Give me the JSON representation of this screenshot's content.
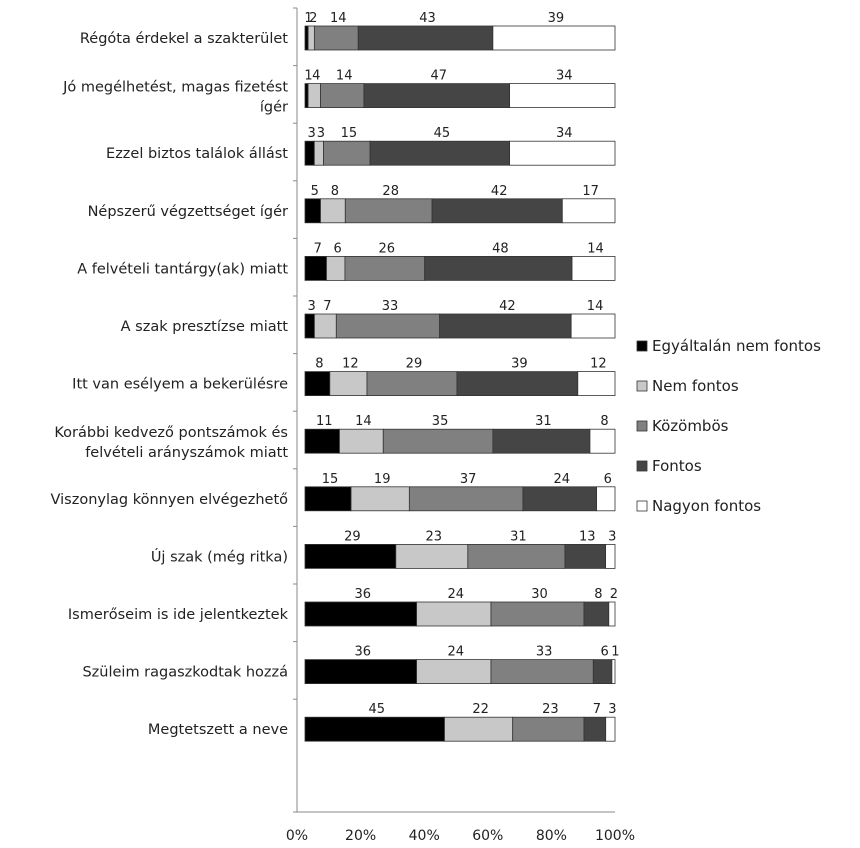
{
  "chart_data": {
    "type": "bar",
    "orientation": "horizontal",
    "stacked": "percent",
    "categories": [
      [
        "Régóta érdekel a szakterület"
      ],
      [
        "Jó megélhetést, magas fizetést",
        "ígér"
      ],
      [
        "Ezzel biztos találok állást"
      ],
      [
        "Népszerű végzettséget ígér"
      ],
      [
        "A felvételi tantárgy(ak) miatt"
      ],
      [
        "A szak presztízse miatt"
      ],
      [
        "Itt van esélyem a bekerülésre"
      ],
      [
        "Korábbi kedvező pontszámok és",
        "felvételi arányszámok miatt"
      ],
      [
        "Viszonylag könnyen elvégezhető"
      ],
      [
        "Új szak (még ritka)"
      ],
      [
        "Ismerőseim is ide jelentkeztek"
      ],
      [
        "Szüleim ragaszkodtak hozzá"
      ],
      [
        "Megtetszett a neve"
      ]
    ],
    "series": [
      {
        "name": "Egyáltalán nem fontos",
        "color": "#000000",
        "values": [
          1,
          1,
          3,
          5,
          7,
          3,
          8,
          11,
          15,
          29,
          36,
          36,
          45
        ]
      },
      {
        "name": "Nem fontos",
        "color": "#c8c8c8",
        "values": [
          2,
          4,
          3,
          8,
          6,
          7,
          12,
          14,
          19,
          23,
          24,
          24,
          22
        ]
      },
      {
        "name": "Közömbös",
        "color": "#808080",
        "values": [
          14,
          14,
          15,
          28,
          26,
          33,
          29,
          35,
          37,
          31,
          30,
          33,
          23
        ]
      },
      {
        "name": "Fontos",
        "color": "#454545",
        "values": [
          43,
          47,
          45,
          42,
          48,
          42,
          39,
          31,
          24,
          13,
          8,
          6,
          7
        ]
      },
      {
        "name": "Nagyon fontos",
        "color": "#ffffff",
        "values": [
          39,
          34,
          34,
          17,
          14,
          14,
          12,
          8,
          6,
          3,
          2,
          1,
          3
        ]
      }
    ],
    "value_labels": [
      [
        "1",
        "2",
        "14",
        "43",
        "39"
      ],
      [
        "1",
        "4",
        "14",
        "47",
        "34"
      ],
      [
        "3",
        "3",
        "15",
        "45",
        "34"
      ],
      [
        "5",
        "8",
        "28",
        "42",
        "17"
      ],
      [
        "7",
        "6",
        "26",
        "48",
        "14"
      ],
      [
        "3",
        "7",
        "33",
        "42",
        "14"
      ],
      [
        "8",
        "12",
        "29",
        "39",
        "12"
      ],
      [
        "11",
        "14",
        "35",
        "31",
        "8"
      ],
      [
        "15",
        "19",
        "37",
        "24",
        "6"
      ],
      [
        "29",
        "23",
        "31",
        "13",
        "3"
      ],
      [
        "36",
        "24",
        "30",
        "8",
        "2"
      ],
      [
        "36",
        "24",
        "33",
        "6",
        "1"
      ],
      [
        "45",
        "22",
        "23",
        "7",
        "3"
      ]
    ],
    "x_ticks": [
      "0%",
      "20%",
      "40%",
      "60%",
      "80%",
      "100%"
    ],
    "xlim": [
      0,
      100
    ],
    "grid": false,
    "legend_position": "right"
  }
}
